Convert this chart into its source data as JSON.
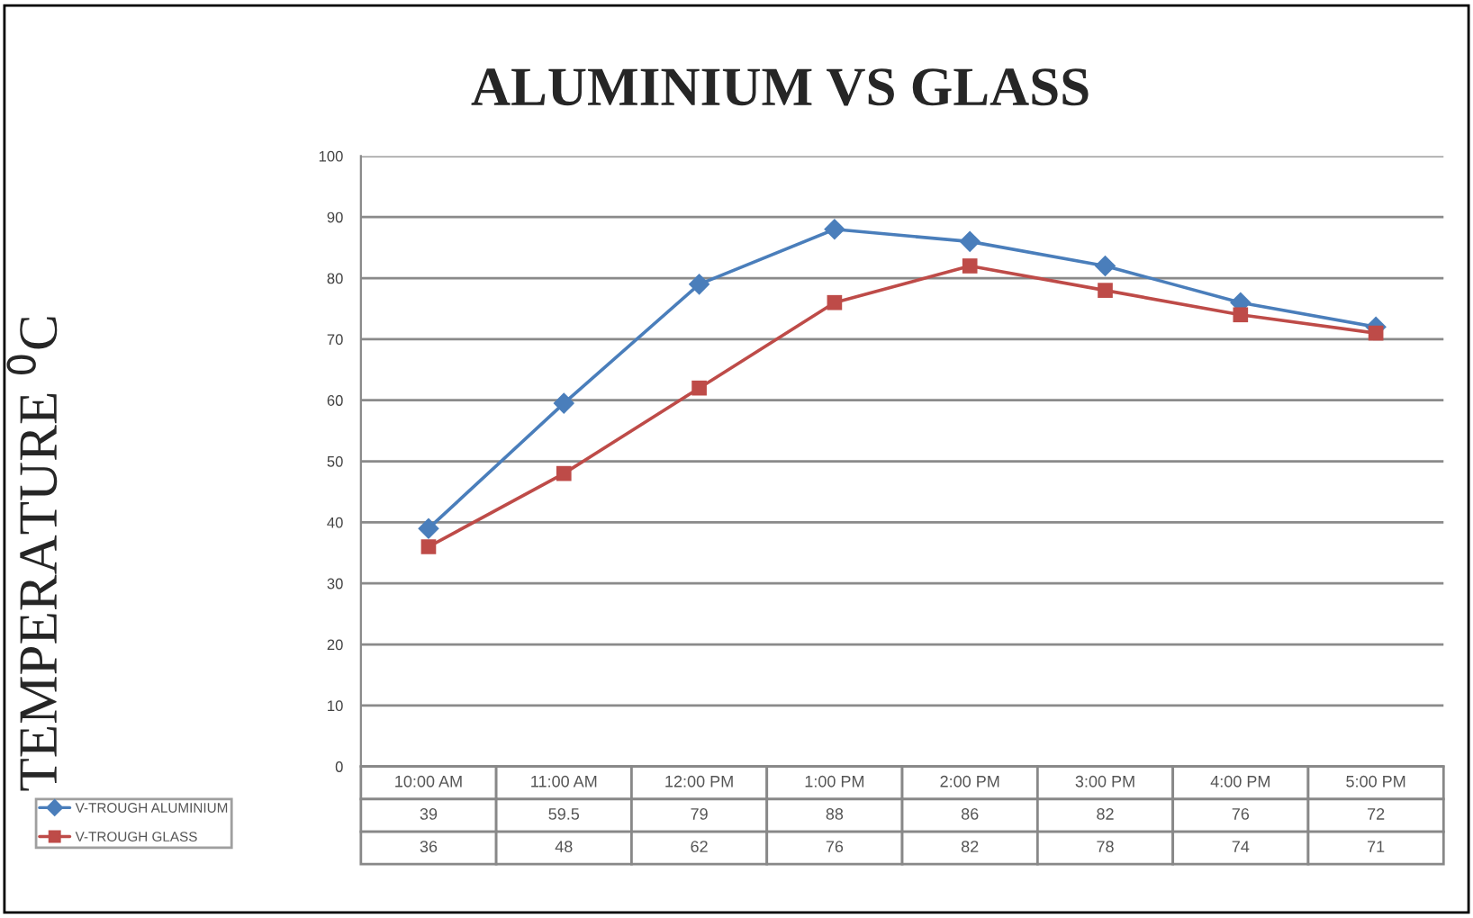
{
  "chart_data": {
    "type": "line",
    "title": "ALUMINIUM VS GLASS",
    "ylabel": "TEMPERATURE $^{0}$C",
    "categories": [
      "10:00 AM",
      "11:00 AM",
      "12:00 PM",
      "1:00 PM",
      "2:00 PM",
      "3:00 PM",
      "4:00 PM",
      "5:00 PM"
    ],
    "series": [
      {
        "name": "V-TROUGH ALUMINIUM",
        "color": "#4a7ebb",
        "marker": "diamond",
        "values": [
          39,
          59.5,
          79,
          88,
          86,
          82,
          76,
          72
        ]
      },
      {
        "name": "V-TROUGH GLASS",
        "color": "#be4b48",
        "marker": "square",
        "values": [
          36,
          48,
          62,
          76,
          82,
          78,
          74,
          71
        ]
      }
    ],
    "ylim": [
      0,
      100
    ],
    "yticks": [
      0,
      10,
      20,
      30,
      40,
      50,
      60,
      70,
      80,
      90,
      100
    ],
    "grid": "y",
    "data_labels": true,
    "legend": "bottom"
  }
}
